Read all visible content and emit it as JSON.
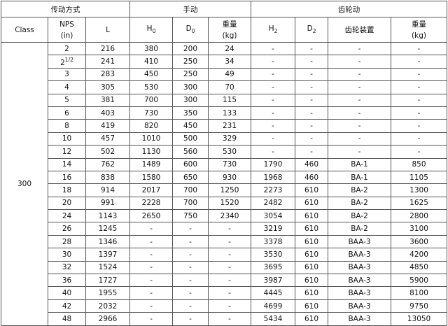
{
  "header": {
    "group_drive": "传动方式",
    "group_manual": "手动",
    "group_gear": "齿轮动",
    "class": "Class",
    "nps_line1": "NPS",
    "nps_line2": "(in)",
    "L": "L",
    "H0": "H",
    "H0_sub": "0",
    "D0": "D",
    "D0_sub": "0",
    "weight_line1": "重量",
    "weight_line2": "(kg)",
    "H2": "H",
    "H2_sub": "2",
    "D2": "D",
    "D2_sub": "2",
    "gear_device": "齿轮装置",
    "gear_weight_line1": "重量",
    "gear_weight_line2": "(kg)"
  },
  "class_value": "300",
  "rows": [
    {
      "nps": "2",
      "L": "216",
      "H0": "380",
      "D0": "200",
      "W": "24",
      "H2": "-",
      "D2": "-",
      "gear": "-",
      "GW": "-"
    },
    {
      "nps": "2",
      "nps_sup": "1/2",
      "L": "241",
      "H0": "410",
      "D0": "250",
      "W": "34",
      "H2": "-",
      "D2": "-",
      "gear": "-",
      "GW": "-"
    },
    {
      "nps": "3",
      "L": "283",
      "H0": "450",
      "D0": "250",
      "W": "49",
      "H2": "-",
      "D2": "-",
      "gear": "-",
      "GW": "-"
    },
    {
      "nps": "4",
      "L": "305",
      "H0": "530",
      "D0": "300",
      "W": "70",
      "H2": "-",
      "D2": "-",
      "gear": "-",
      "GW": "-"
    },
    {
      "nps": "5",
      "L": "381",
      "H0": "700",
      "D0": "300",
      "W": "115",
      "H2": "-",
      "D2": "-",
      "gear": "-",
      "GW": "-"
    },
    {
      "nps": "6",
      "L": "403",
      "H0": "730",
      "D0": "350",
      "W": "133",
      "H2": "-",
      "D2": "-",
      "gear": "-",
      "GW": "-"
    },
    {
      "nps": "8",
      "L": "419",
      "H0": "820",
      "D0": "450",
      "W": "231",
      "H2": "-",
      "D2": "-",
      "gear": "-",
      "GW": "-"
    },
    {
      "nps": "10",
      "L": "457",
      "H0": "1010",
      "D0": "500",
      "W": "329",
      "H2": "-",
      "D2": "-",
      "gear": "-",
      "GW": "-"
    },
    {
      "nps": "12",
      "L": "502",
      "H0": "1130",
      "D0": "560",
      "W": "530",
      "H2": "-",
      "D2": "-",
      "gear": "-",
      "GW": "-"
    },
    {
      "nps": "14",
      "L": "762",
      "H0": "1489",
      "D0": "600",
      "W": "730",
      "H2": "1790",
      "D2": "460",
      "gear": "BA-1",
      "GW": "850"
    },
    {
      "nps": "16",
      "L": "838",
      "H0": "1580",
      "D0": "650",
      "W": "930",
      "H2": "1968",
      "D2": "460",
      "gear": "BA-1",
      "GW": "1105"
    },
    {
      "nps": "18",
      "L": "914",
      "H0": "2017",
      "D0": "700",
      "W": "1250",
      "H2": "2273",
      "D2": "610",
      "gear": "BA-2",
      "GW": "1300"
    },
    {
      "nps": "20",
      "L": "991",
      "H0": "2228",
      "D0": "700",
      "W": "1520",
      "H2": "2482",
      "D2": "610",
      "gear": "BA-2",
      "GW": "1625"
    },
    {
      "nps": "24",
      "L": "1143",
      "H0": "2650",
      "D0": "750",
      "W": "2340",
      "H2": "3054",
      "D2": "610",
      "gear": "BA-2",
      "GW": "2800"
    },
    {
      "nps": "26",
      "L": "1245",
      "H0": "-",
      "D0": "-",
      "W": "-",
      "H2": "3219",
      "D2": "610",
      "gear": "BA-2",
      "GW": "3100"
    },
    {
      "nps": "28",
      "L": "1346",
      "H0": "-",
      "D0": "-",
      "W": "-",
      "H2": "3378",
      "D2": "610",
      "gear": "BAA-3",
      "GW": "3600"
    },
    {
      "nps": "30",
      "L": "1397",
      "H0": "-",
      "D0": "-",
      "W": "-",
      "H2": "3530",
      "D2": "610",
      "gear": "BAA-3",
      "GW": "4200"
    },
    {
      "nps": "32",
      "L": "1524",
      "H0": "-",
      "D0": "-",
      "W": "-",
      "H2": "3695",
      "D2": "610",
      "gear": "BAA-3",
      "GW": "4850"
    },
    {
      "nps": "36",
      "L": "1727",
      "H0": "-",
      "D0": "-",
      "W": "-",
      "H2": "3987",
      "D2": "610",
      "gear": "BAA-3",
      "GW": "5900"
    },
    {
      "nps": "40",
      "L": "1955",
      "H0": "-",
      "D0": "-",
      "W": "-",
      "H2": "4445",
      "D2": "610",
      "gear": "BAA-3",
      "GW": "8100"
    },
    {
      "nps": "42",
      "L": "2032",
      "H0": "-",
      "D0": "-",
      "W": "-",
      "H2": "4699",
      "D2": "610",
      "gear": "BAA-3",
      "GW": "9750"
    },
    {
      "nps": "48",
      "L": "2966",
      "H0": "-",
      "D0": "-",
      "W": "-",
      "H2": "5434",
      "D2": "610",
      "gear": "BAA-3",
      "GW": "13050"
    }
  ]
}
